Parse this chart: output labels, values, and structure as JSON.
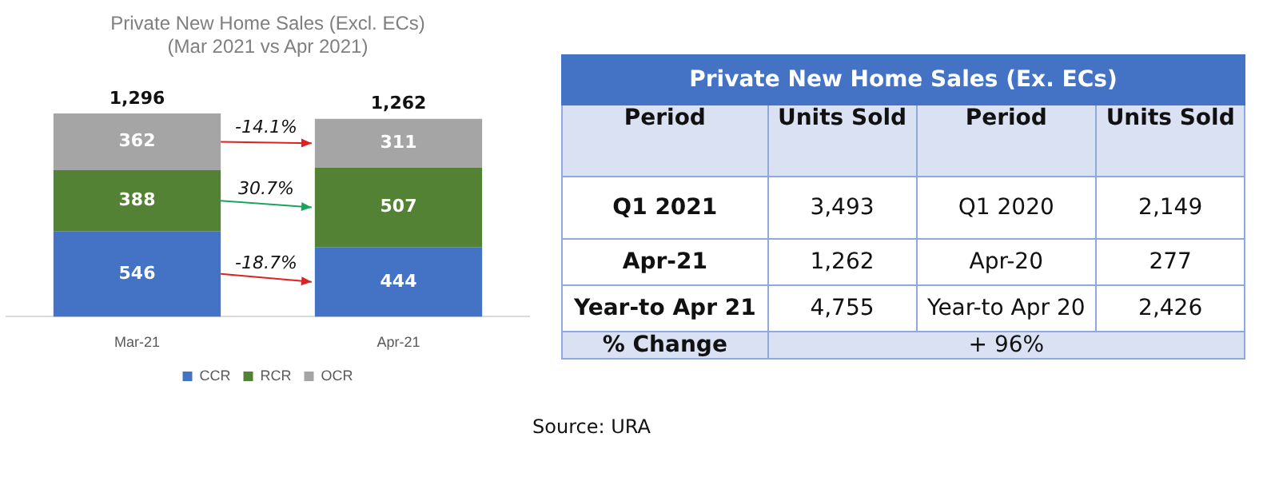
{
  "chart_data": [
    {
      "type": "bar",
      "title": [
        "Private New Home Sales (Excl. ECs)",
        "(Mar 2021 vs Apr 2021)"
      ],
      "categories": [
        "Mar-21",
        "Apr-21"
      ],
      "stacked": true,
      "data_labels": true,
      "totals": [
        "1,296",
        "1,262"
      ],
      "legend": "bottom",
      "series": [
        {
          "name": "CCR",
          "color": "#4472c4",
          "values": [
            546,
            444
          ]
        },
        {
          "name": "RCR",
          "color": "#548235",
          "values": [
            388,
            507
          ]
        },
        {
          "name": "OCR",
          "color": "#a5a5a5",
          "values": [
            362,
            311
          ]
        }
      ],
      "annotations": [
        "-14.1%",
        "30.7%",
        "-18.7%"
      ]
    },
    {
      "type": "other",
      "title": "Private New Home Sales (Ex. ECs)",
      "cell_labels": [
        [
          "Period",
          "Units Sold",
          "Period",
          "Units Sold"
        ],
        [
          "Q1 2021",
          "3,493",
          "Q1 2020",
          "2,149"
        ],
        [
          "Apr-21",
          "1,262",
          "Apr-20",
          "277"
        ],
        [
          "Year-to Apr 21",
          "4,755",
          "Year-to Apr 20",
          "2,426"
        ],
        [
          "% Change",
          "+ 96%"
        ]
      ],
      "annotations": [
        "Source: URA"
      ]
    }
  ]
}
